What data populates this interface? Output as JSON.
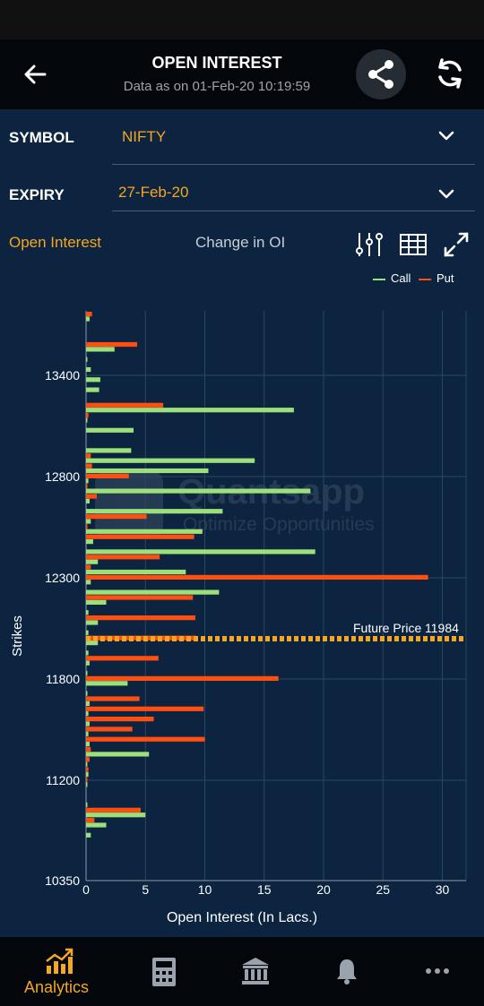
{
  "header": {
    "title": "OPEN INTEREST",
    "subtitle": "Data as on 01-Feb-20 10:19:59"
  },
  "symbol": {
    "label": "SYMBOL",
    "value": "NIFTY"
  },
  "expiry": {
    "label": "EXPIRY",
    "value": "27-Feb-20"
  },
  "tabs": [
    {
      "label": "Open Interest",
      "active": true
    },
    {
      "label": "Change in OI",
      "active": false
    }
  ],
  "legend": {
    "call": "Call",
    "put": "Put"
  },
  "colors": {
    "call": "#9be07a",
    "put": "#ff4e12",
    "accent": "#f5a623"
  },
  "watermark": {
    "name": "Quantsapp",
    "tagline": "Optimize Opportunities"
  },
  "chart_data": {
    "type": "bar",
    "orientation": "horizontal",
    "xlabel": "Open Interest (In Lacs.)",
    "ylabel": "Strikes",
    "xlim": [
      0,
      32
    ],
    "x_ticks": [
      0,
      5,
      10,
      15,
      20,
      25,
      30
    ],
    "y_ticks": [
      "13400",
      "12800",
      "12300",
      "11800",
      "11200",
      "10350"
    ],
    "grid": true,
    "legend_position": "top-right",
    "future_price": {
      "label": "Future Price",
      "value": "11984"
    },
    "series": [
      {
        "name": "Call",
        "values": [
          0.3,
          0,
          0,
          2.4,
          0.1,
          0.4,
          1.2,
          1.1,
          0,
          17.5,
          0.1,
          4.0,
          0,
          3.8,
          14.2,
          10.3,
          0.2,
          18.9,
          0.3,
          11.5,
          0.4,
          9.8,
          0.6,
          19.3,
          1.0,
          8.4,
          0.4,
          11.2,
          1.7,
          0.2,
          1.0,
          0.2,
          1.0,
          0.2,
          0.3,
          0.1,
          3.5,
          0.1,
          0.3,
          0.2,
          0.3,
          0.2,
          0.3,
          5.3,
          0.1,
          0.2,
          0.1,
          0,
          0.1,
          5.0,
          1.7,
          0.4
        ]
      },
      {
        "name": "Put",
        "values": [
          0.5,
          0,
          0,
          4.3,
          0,
          0,
          0,
          0,
          0,
          6.5,
          0.2,
          0,
          0,
          0,
          0.4,
          0.5,
          3.6,
          0.1,
          0.9,
          0,
          5.1,
          0.1,
          9.1,
          0,
          6.2,
          0.4,
          28.8,
          0,
          9.0,
          0,
          9.2,
          0,
          9.3,
          0,
          6.1,
          0,
          16.2,
          0,
          4.5,
          9.9,
          5.7,
          3.9,
          10.0,
          0.4,
          0.3,
          0.2,
          0.1,
          0,
          0,
          4.6,
          0.7,
          0
        ]
      }
    ]
  },
  "nav": [
    {
      "label": "Analytics",
      "icon": "chart-icon",
      "active": true
    },
    {
      "label": "",
      "icon": "calculator-icon"
    },
    {
      "label": "",
      "icon": "bank-icon"
    },
    {
      "label": "",
      "icon": "bell-icon"
    },
    {
      "label": "",
      "icon": "more-icon"
    }
  ]
}
